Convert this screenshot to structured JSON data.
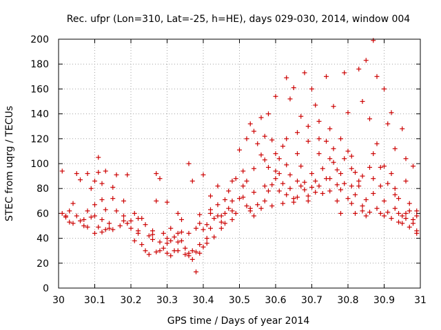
{
  "chart_data": {
    "type": "scatter",
    "title": "Rec. ufpr (Lon=310, Lat=-25, h=HE), days 029-030, 2014, window 004",
    "xlabel": "GPS time / Days of year 2014",
    "ylabel": "STEC from uqrg / TECUs",
    "xlim": [
      30,
      31
    ],
    "ylim": [
      0,
      200
    ],
    "grid": true,
    "marker": "+",
    "color": "#cc0000",
    "x_ticks": [
      "30",
      "30.1",
      "30.2",
      "30.3",
      "30.4",
      "30.5",
      "30.6",
      "30.7",
      "30.8",
      "30.9",
      "31"
    ],
    "y_ticks": [
      "0",
      "20",
      "40",
      "60",
      "80",
      "100",
      "120",
      "140",
      "160",
      "180",
      "200"
    ],
    "series": [
      {
        "name": "STEC",
        "points": [
          [
            30.01,
            94
          ],
          [
            30.01,
            60
          ],
          [
            30.02,
            57
          ],
          [
            30.03,
            53
          ],
          [
            30.04,
            68
          ],
          [
            30.05,
            92
          ],
          [
            30.05,
            58
          ],
          [
            30.06,
            87
          ],
          [
            30.07,
            55
          ],
          [
            30.08,
            92
          ],
          [
            30.08,
            62
          ],
          [
            30.08,
            49
          ],
          [
            30.09,
            80
          ],
          [
            30.1,
            86
          ],
          [
            30.1,
            67
          ],
          [
            30.1,
            58
          ],
          [
            30.11,
            105
          ],
          [
            30.11,
            93
          ],
          [
            30.12,
            84
          ],
          [
            30.12,
            71
          ],
          [
            30.12,
            55
          ],
          [
            30.13,
            94
          ],
          [
            30.13,
            63
          ],
          [
            30.14,
            48
          ],
          [
            30.15,
            81
          ],
          [
            30.16,
            91
          ],
          [
            30.16,
            62
          ],
          [
            30.18,
            54
          ],
          [
            30.18,
            70
          ],
          [
            30.19,
            91
          ],
          [
            30.2,
            54
          ],
          [
            30.21,
            60
          ],
          [
            30.22,
            44
          ],
          [
            30.23,
            56
          ],
          [
            30.24,
            51
          ],
          [
            30.25,
            42
          ],
          [
            30.26,
            39
          ],
          [
            30.27,
            92
          ],
          [
            30.27,
            70
          ],
          [
            30.28,
            88
          ],
          [
            30.28,
            37
          ],
          [
            30.29,
            44
          ],
          [
            30.3,
            69
          ],
          [
            30.3,
            36
          ],
          [
            30.31,
            48
          ],
          [
            30.31,
            26
          ],
          [
            30.32,
            41
          ],
          [
            30.33,
            60
          ],
          [
            30.33,
            37
          ],
          [
            30.34,
            55
          ],
          [
            30.34,
            45
          ],
          [
            30.35,
            32
          ],
          [
            30.36,
            100
          ],
          [
            30.36,
            28
          ],
          [
            30.37,
            23
          ],
          [
            30.37,
            86
          ],
          [
            30.38,
            48
          ],
          [
            30.38,
            13
          ],
          [
            30.39,
            28
          ],
          [
            30.39,
            59
          ],
          [
            30.4,
            91
          ],
          [
            30.4,
            33
          ],
          [
            30.41,
            51
          ],
          [
            30.41,
            40
          ],
          [
            30.42,
            74
          ],
          [
            30.42,
            63
          ],
          [
            30.43,
            56
          ],
          [
            30.44,
            82
          ],
          [
            30.44,
            67
          ],
          [
            30.45,
            48
          ],
          [
            30.46,
            60
          ],
          [
            30.46,
            71
          ],
          [
            30.47,
            78
          ],
          [
            30.48,
            86
          ],
          [
            30.48,
            62
          ],
          [
            30.49,
            88
          ],
          [
            30.5,
            111
          ],
          [
            30.5,
            72
          ],
          [
            30.51,
            94
          ],
          [
            30.52,
            120
          ],
          [
            30.52,
            86
          ],
          [
            30.53,
            132
          ],
          [
            30.53,
            64
          ],
          [
            30.54,
            126
          ],
          [
            30.54,
            77
          ],
          [
            30.55,
            116
          ],
          [
            30.56,
            137
          ],
          [
            30.56,
            107
          ],
          [
            30.57,
            103
          ],
          [
            30.57,
            82
          ],
          [
            30.58,
            140
          ],
          [
            30.58,
            97
          ],
          [
            30.59,
            119
          ],
          [
            30.59,
            66
          ],
          [
            30.6,
            154
          ],
          [
            30.6,
            88
          ],
          [
            30.61,
            104
          ],
          [
            30.61,
            78
          ],
          [
            30.62,
            114
          ],
          [
            30.62,
            68
          ],
          [
            30.63,
            169
          ],
          [
            30.63,
            99
          ],
          [
            30.64,
            152
          ],
          [
            30.64,
            91
          ],
          [
            30.65,
            161
          ],
          [
            30.65,
            72
          ],
          [
            30.66,
            125
          ],
          [
            30.66,
            86
          ],
          [
            30.67,
            138
          ],
          [
            30.67,
            98
          ],
          [
            30.68,
            173
          ],
          [
            30.68,
            79
          ],
          [
            30.69,
            118
          ],
          [
            30.69,
            70
          ],
          [
            30.7,
            160
          ],
          [
            30.7,
            92
          ],
          [
            30.71,
            147
          ],
          [
            30.71,
            77
          ],
          [
            30.72,
            134
          ],
          [
            30.72,
            108
          ],
          [
            30.73,
            76
          ],
          [
            30.74,
            170
          ],
          [
            30.74,
            118
          ],
          [
            30.75,
            128
          ],
          [
            30.75,
            88
          ],
          [
            30.76,
            146
          ],
          [
            30.76,
            112
          ],
          [
            30.77,
            95
          ],
          [
            30.77,
            70
          ],
          [
            30.78,
            120
          ],
          [
            30.78,
            60
          ],
          [
            30.79,
            173
          ],
          [
            30.79,
            84
          ],
          [
            30.8,
            141
          ],
          [
            30.8,
            110
          ],
          [
            30.81,
            82
          ],
          [
            30.81,
            68
          ],
          [
            30.82,
            93
          ],
          [
            30.82,
            60
          ],
          [
            30.83,
            176
          ],
          [
            30.83,
            86
          ],
          [
            30.84,
            150
          ],
          [
            30.84,
            66
          ],
          [
            30.85,
            183
          ],
          [
            30.85,
            58
          ],
          [
            30.86,
            136
          ],
          [
            30.86,
            97
          ],
          [
            30.87,
            199
          ],
          [
            30.87,
            76
          ],
          [
            30.88,
            170
          ],
          [
            30.88,
            116
          ],
          [
            30.89,
            97
          ],
          [
            30.89,
            60
          ],
          [
            30.9,
            160
          ],
          [
            30.9,
            70
          ],
          [
            30.91,
            132
          ],
          [
            30.91,
            84
          ],
          [
            30.92,
            141
          ],
          [
            30.92,
            92
          ],
          [
            30.93,
            112
          ],
          [
            30.93,
            64
          ],
          [
            30.94,
            72
          ],
          [
            30.94,
            53
          ],
          [
            30.95,
            128
          ],
          [
            30.95,
            58
          ],
          [
            30.96,
            104
          ],
          [
            30.96,
            60
          ],
          [
            30.97,
            68
          ],
          [
            30.97,
            49
          ],
          [
            30.98,
            98
          ],
          [
            30.98,
            55
          ],
          [
            30.99,
            62
          ],
          [
            30.99,
            46
          ],
          [
            30.02,
            58
          ],
          [
            30.03,
            62
          ],
          [
            30.04,
            52
          ],
          [
            30.06,
            54
          ],
          [
            30.07,
            50
          ],
          [
            30.09,
            57
          ],
          [
            30.1,
            44
          ],
          [
            30.11,
            49
          ],
          [
            30.12,
            45
          ],
          [
            30.13,
            47
          ],
          [
            30.14,
            52
          ],
          [
            30.15,
            47
          ],
          [
            30.17,
            50
          ],
          [
            30.19,
            52
          ],
          [
            30.2,
            48
          ],
          [
            30.21,
            38
          ],
          [
            30.22,
            46
          ],
          [
            30.23,
            35
          ],
          [
            30.24,
            30
          ],
          [
            30.25,
            27
          ],
          [
            30.26,
            46
          ],
          [
            30.27,
            29
          ],
          [
            30.28,
            30
          ],
          [
            30.29,
            32
          ],
          [
            30.3,
            28
          ],
          [
            30.31,
            38
          ],
          [
            30.32,
            30
          ],
          [
            30.33,
            30
          ],
          [
            30.34,
            38
          ],
          [
            30.35,
            27
          ],
          [
            30.36,
            26
          ],
          [
            30.37,
            30
          ],
          [
            30.38,
            29
          ],
          [
            30.39,
            35
          ],
          [
            30.4,
            47
          ],
          [
            30.41,
            36
          ],
          [
            30.42,
            48
          ],
          [
            30.43,
            41
          ],
          [
            30.44,
            58
          ],
          [
            30.45,
            53
          ],
          [
            30.46,
            52
          ],
          [
            30.47,
            64
          ],
          [
            30.48,
            55
          ],
          [
            30.49,
            60
          ],
          [
            30.51,
            73
          ],
          [
            30.52,
            66
          ],
          [
            30.53,
            62
          ],
          [
            30.54,
            58
          ],
          [
            30.55,
            67
          ],
          [
            30.56,
            64
          ],
          [
            30.57,
            70
          ],
          [
            30.58,
            78
          ],
          [
            30.59,
            83
          ],
          [
            30.6,
            94
          ],
          [
            30.61,
            92
          ],
          [
            30.62,
            84
          ],
          [
            30.63,
            75
          ],
          [
            30.64,
            80
          ],
          [
            30.65,
            69
          ],
          [
            30.66,
            73
          ],
          [
            30.67,
            82
          ],
          [
            30.68,
            85
          ],
          [
            30.69,
            74
          ],
          [
            30.7,
            81
          ],
          [
            30.71,
            86
          ],
          [
            30.72,
            82
          ],
          [
            30.73,
            96
          ],
          [
            30.74,
            88
          ],
          [
            30.75,
            78
          ],
          [
            30.76,
            101
          ],
          [
            30.77,
            83
          ],
          [
            30.78,
            79
          ],
          [
            30.79,
            104
          ],
          [
            30.8,
            72
          ],
          [
            30.81,
            96
          ],
          [
            30.82,
            75
          ],
          [
            30.83,
            82
          ],
          [
            30.84,
            62
          ],
          [
            30.85,
            71
          ],
          [
            30.86,
            61
          ],
          [
            30.87,
            88
          ],
          [
            30.88,
            64
          ],
          [
            30.89,
            82
          ],
          [
            30.9,
            58
          ],
          [
            30.91,
            61
          ],
          [
            30.92,
            56
          ],
          [
            30.93,
            75
          ],
          [
            30.94,
            60
          ],
          [
            30.95,
            52
          ],
          [
            30.96,
            56
          ],
          [
            30.97,
            62
          ],
          [
            30.98,
            52
          ],
          [
            30.99,
            58
          ],
          [
            30.99,
            44
          ],
          [
            30.15,
            72
          ],
          [
            30.18,
            58
          ],
          [
            30.22,
            56
          ],
          [
            30.26,
            43
          ],
          [
            30.3,
            40
          ],
          [
            30.33,
            44
          ],
          [
            30.36,
            44
          ],
          [
            30.39,
            52
          ],
          [
            30.42,
            60
          ],
          [
            30.45,
            58
          ],
          [
            30.48,
            70
          ],
          [
            30.51,
            82
          ],
          [
            30.54,
            96
          ],
          [
            30.57,
            122
          ],
          [
            30.6,
            108
          ],
          [
            30.63,
            120
          ],
          [
            30.66,
            108
          ],
          [
            30.69,
            130
          ],
          [
            30.72,
            120
          ],
          [
            30.75,
            104
          ],
          [
            30.78,
            92
          ],
          [
            30.81,
            106
          ],
          [
            30.84,
            90
          ],
          [
            30.87,
            108
          ],
          [
            30.9,
            98
          ],
          [
            30.93,
            80
          ],
          [
            30.96,
            86
          ]
        ]
      }
    ]
  }
}
